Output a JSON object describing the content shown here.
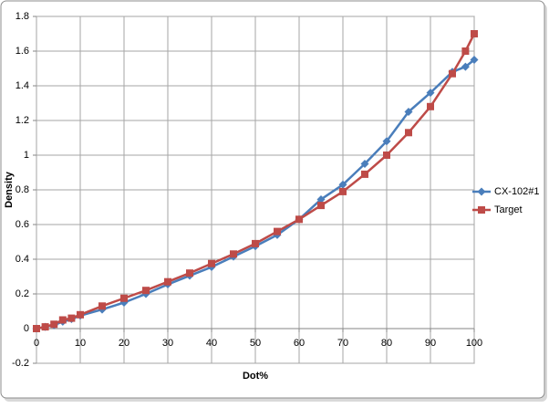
{
  "chart_data": {
    "type": "line",
    "x_label": "Dot%",
    "y_label": "Density",
    "x": [
      0,
      2,
      4,
      6,
      8,
      10,
      15,
      20,
      25,
      30,
      35,
      40,
      45,
      50,
      55,
      60,
      65,
      70,
      75,
      80,
      85,
      90,
      95,
      98,
      100
    ],
    "series": [
      {
        "name": "CX-102#1",
        "color": "#4a7ebb",
        "marker": "diamond",
        "values": [
          0,
          0.01,
          0.02,
          0.04,
          0.055,
          0.075,
          0.11,
          0.15,
          0.2,
          0.255,
          0.305,
          0.355,
          0.415,
          0.475,
          0.54,
          0.63,
          0.745,
          0.83,
          0.95,
          1.08,
          1.25,
          1.36,
          1.48,
          1.51,
          1.55
        ]
      },
      {
        "name": "Target",
        "color": "#be4b48",
        "marker": "square",
        "values": [
          0,
          0.01,
          0.025,
          0.05,
          0.06,
          0.08,
          0.13,
          0.175,
          0.22,
          0.27,
          0.32,
          0.375,
          0.43,
          0.49,
          0.56,
          0.63,
          0.71,
          0.79,
          0.89,
          1.0,
          1.13,
          1.28,
          1.47,
          1.6,
          1.7
        ]
      }
    ],
    "xlim": [
      0,
      100
    ],
    "xticks": [
      0,
      10,
      20,
      30,
      40,
      50,
      60,
      70,
      80,
      90,
      100
    ],
    "ylim": [
      -0.2,
      1.8
    ],
    "yticks": [
      -0.2,
      0,
      0.2,
      0.4,
      0.6,
      0.8,
      1,
      1.2,
      1.4,
      1.6,
      1.8
    ],
    "grid": true,
    "legend": "right"
  }
}
